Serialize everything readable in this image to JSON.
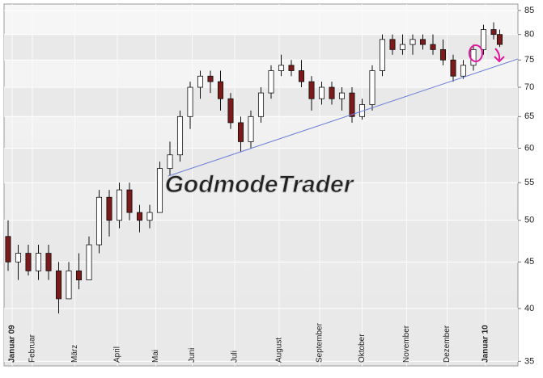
{
  "chart_data": {
    "type": "candlestick",
    "watermark": "GodmodeTrader",
    "log_scale": true,
    "grid": true,
    "ylim": [
      34.6,
      86.4
    ],
    "yticks": [
      35,
      40,
      45,
      50,
      55,
      60,
      65,
      70,
      75,
      80,
      85
    ],
    "xlim": [
      0,
      254
    ],
    "xticks": [
      {
        "value": 4,
        "label": "Januar 09"
      },
      {
        "value": 14,
        "label": "Februar"
      },
      {
        "value": 35,
        "label": "März"
      },
      {
        "value": 56,
        "label": "April"
      },
      {
        "value": 75,
        "label": "Mai"
      },
      {
        "value": 93,
        "label": "Juni"
      },
      {
        "value": 114,
        "label": "Juli"
      },
      {
        "value": 136,
        "label": "August"
      },
      {
        "value": 156,
        "label": "September"
      },
      {
        "value": 177,
        "label": "Oktober"
      },
      {
        "value": 199,
        "label": "November"
      },
      {
        "value": 219,
        "label": "Dezember"
      },
      {
        "value": 238,
        "label": "Januar 10"
      }
    ],
    "up_color": "#ffffff",
    "down_color": "#7a1a1a",
    "wick_color": "#111111",
    "x": [
      2,
      7,
      12,
      17,
      22,
      27,
      32,
      37,
      42,
      47,
      52,
      57,
      62,
      67,
      72,
      77,
      82,
      87,
      92,
      97,
      102,
      107,
      112,
      117,
      122,
      127,
      132,
      137,
      142,
      147,
      152,
      157,
      162,
      167,
      172,
      177,
      182,
      187,
      192,
      197,
      202,
      207,
      212,
      217,
      222,
      227,
      232,
      237,
      242,
      245
    ],
    "open": [
      48,
      45,
      46,
      44,
      46,
      44,
      41,
      44,
      43,
      47,
      53,
      50,
      54,
      51,
      50,
      51,
      57,
      59,
      65,
      70,
      72,
      71,
      68,
      64,
      61,
      65,
      69,
      73,
      74,
      73,
      71,
      68,
      70,
      68,
      69,
      65,
      67,
      73,
      79,
      77,
      78,
      79,
      78,
      77,
      75,
      72,
      74,
      77,
      81,
      80
    ],
    "high": [
      50,
      47,
      47,
      47,
      47,
      45,
      45,
      46,
      48,
      54,
      54,
      55,
      55,
      52,
      52,
      58,
      61,
      66,
      71,
      73,
      73,
      73,
      69,
      65,
      66,
      70,
      74,
      76,
      75,
      75,
      72,
      71,
      71,
      70,
      70,
      68,
      74,
      80,
      80,
      80,
      80,
      80,
      80,
      79,
      76,
      75,
      78,
      82,
      82.5,
      81
    ],
    "low": [
      44,
      43,
      43.5,
      43,
      43,
      39.5,
      41,
      42,
      43,
      46,
      48,
      49,
      50,
      48.5,
      49,
      51,
      56,
      58,
      63,
      68,
      69,
      66,
      63,
      59.5,
      60,
      64,
      68,
      72,
      72,
      70,
      66,
      67,
      67,
      66,
      64,
      64.5,
      66,
      72,
      76,
      76,
      76,
      77,
      76,
      74,
      71,
      71.5,
      73,
      76,
      79,
      77.5
    ],
    "close": [
      45,
      46,
      44,
      46,
      44,
      41,
      44,
      43,
      47,
      53,
      50,
      54,
      51,
      50,
      51,
      57,
      59,
      65,
      70,
      72,
      71,
      68,
      64,
      61,
      65,
      69,
      73,
      74,
      73,
      71,
      68,
      70,
      68,
      69,
      65,
      67,
      73,
      79,
      77,
      78,
      79,
      78,
      77,
      75,
      72,
      74,
      77,
      81,
      80,
      78
    ],
    "trendline": {
      "x": [
        81,
        254
      ],
      "y": [
        55.9,
        75.2
      ],
      "color": "#6f7fd8"
    }
  }
}
